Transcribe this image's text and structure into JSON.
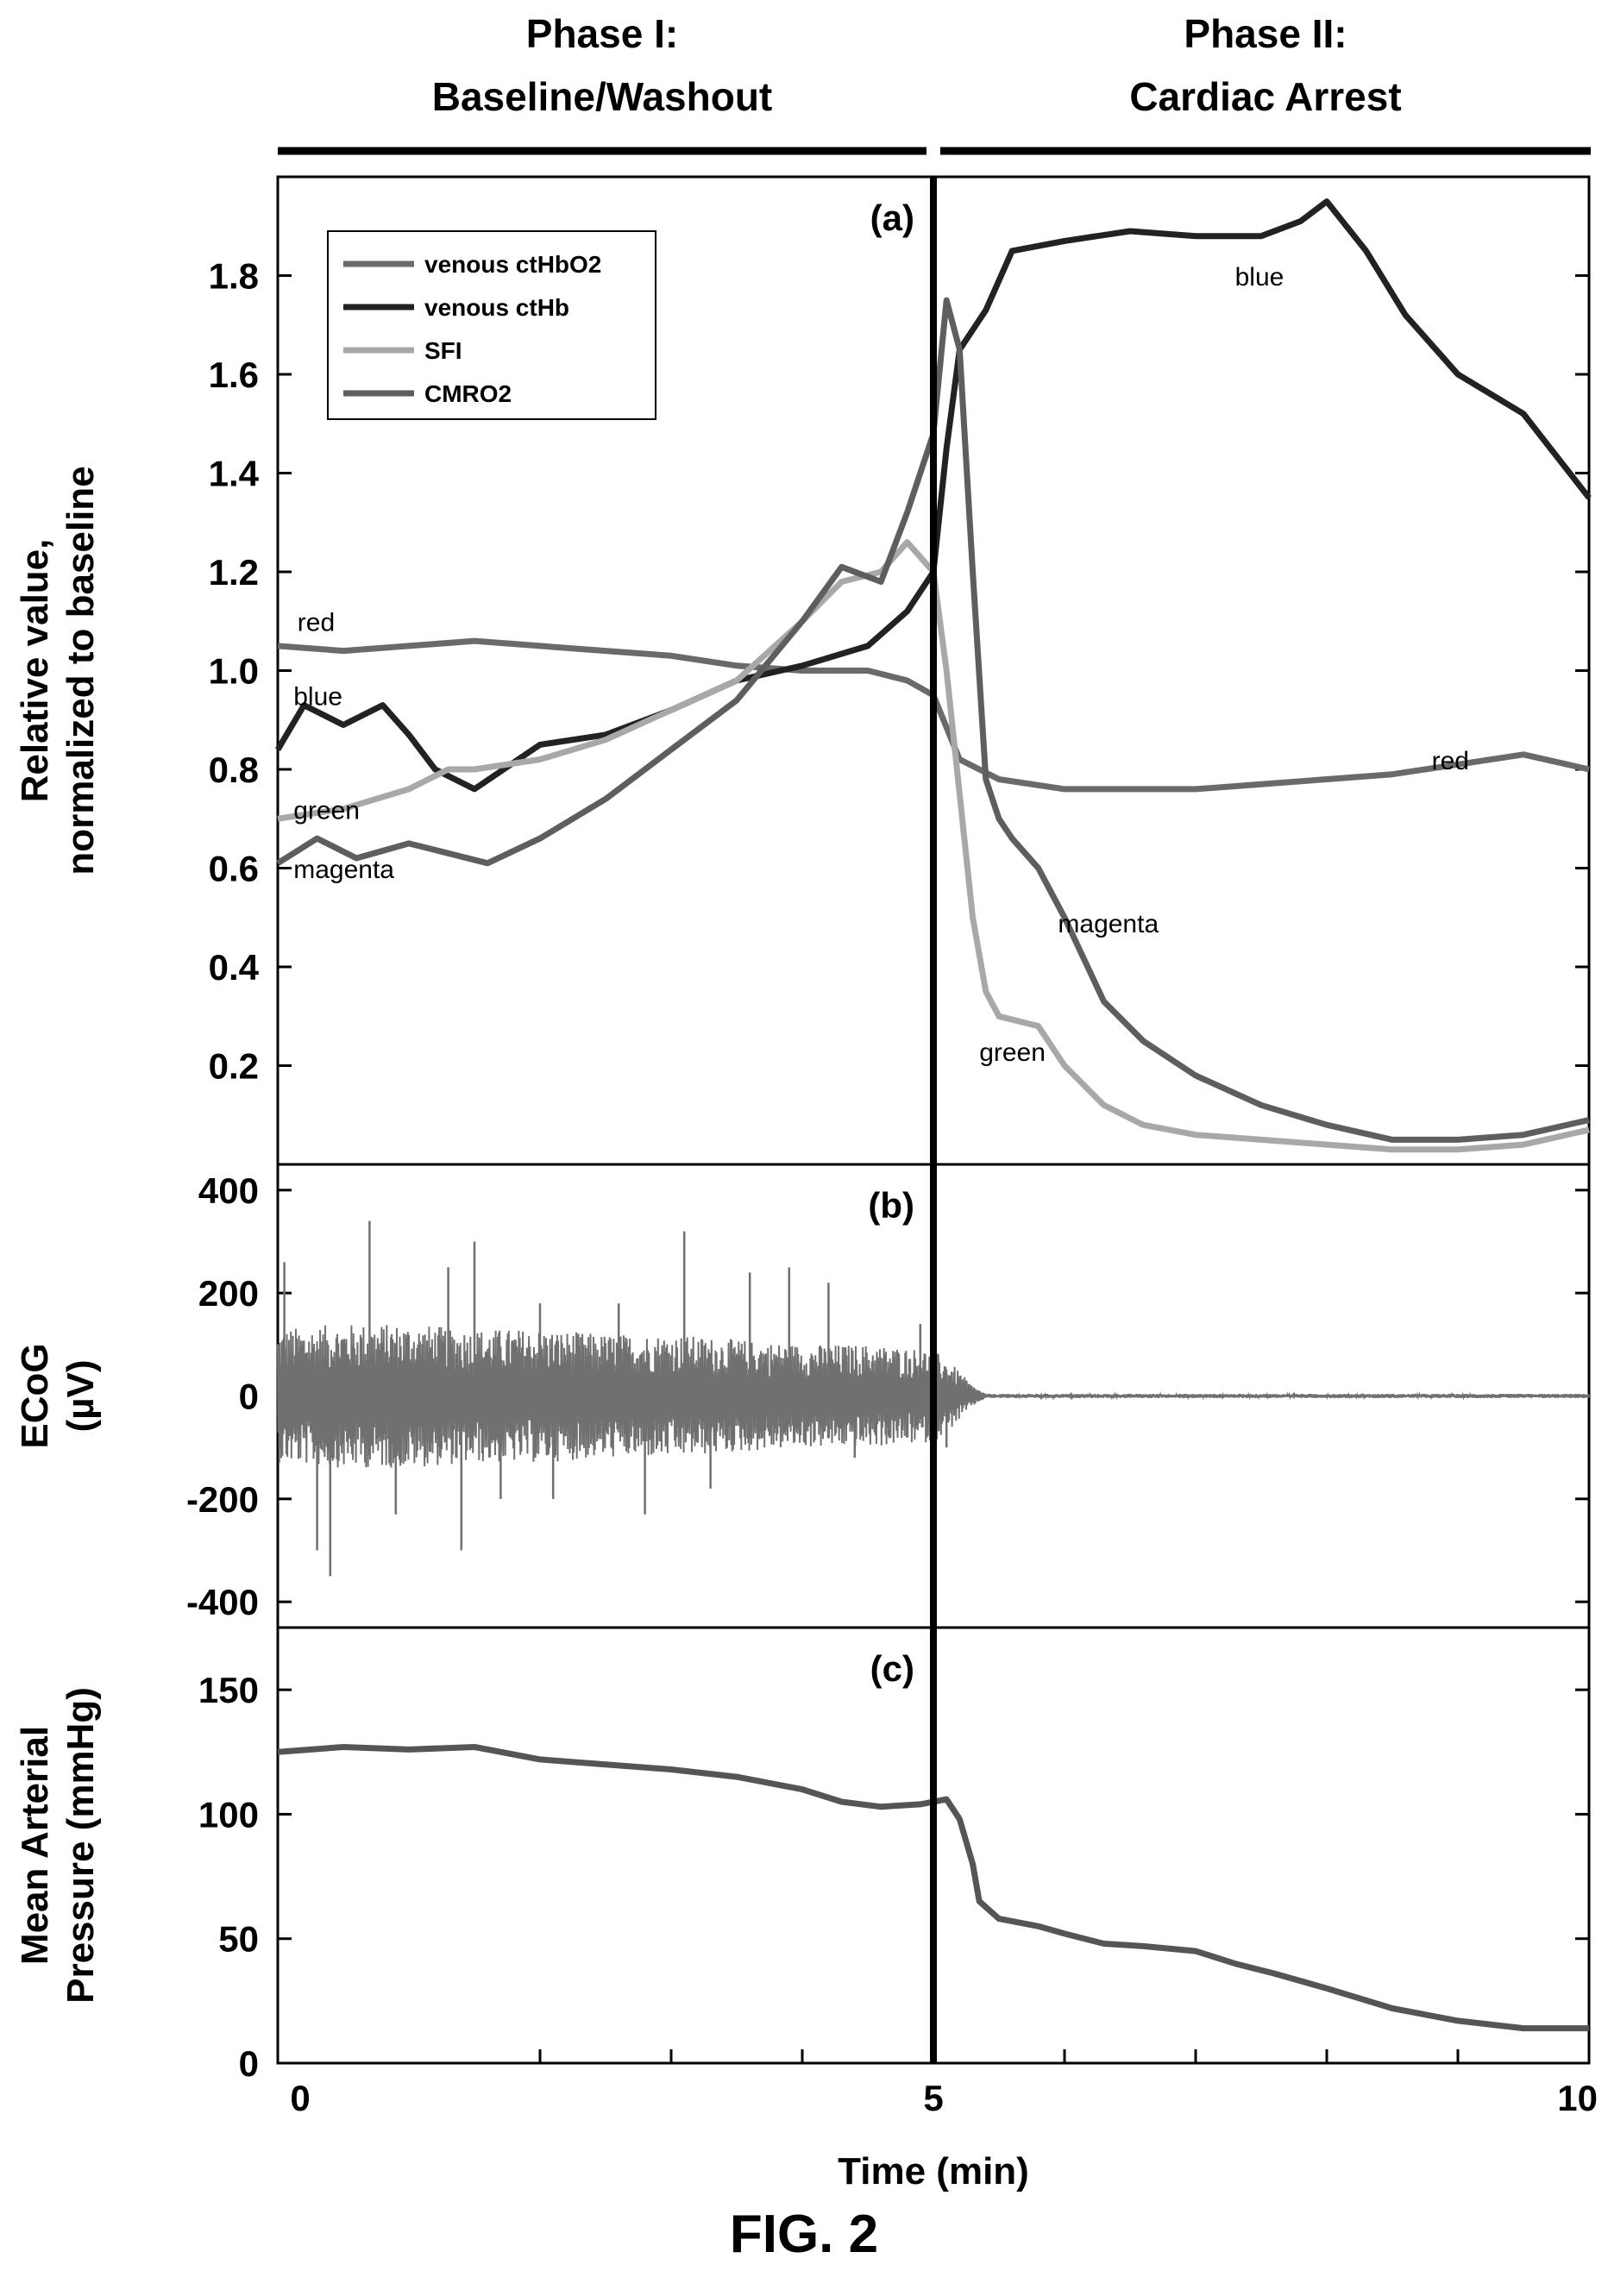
{
  "figure_label": "FIG. 2",
  "phases": [
    {
      "line1": "Phase I:",
      "line2": "Baseline/Washout",
      "x_start": 0,
      "x_end": 5
    },
    {
      "line1": "Phase II:",
      "line2": "Cardiac Arrest",
      "x_start": 5,
      "x_end": 10
    }
  ],
  "colors": {
    "red": "#6a6a6a",
    "blue": "#222222",
    "green": "#a8a8a8",
    "magenta": "#5e5e5e",
    "ecog": "#707070",
    "map": "#555555"
  },
  "chart_data": [
    {
      "id": "a",
      "type": "line",
      "panel_label": "(a)",
      "title": "",
      "xlabel": "",
      "ylabel": [
        "Relative value,",
        "normalized to baseline"
      ],
      "xlim": [
        0,
        10
      ],
      "ylim": [
        0,
        2.0
      ],
      "yticks": [
        0.2,
        0.4,
        0.6,
        0.8,
        1.0,
        1.2,
        1.4,
        1.6,
        1.8
      ],
      "ytick_labels": [
        "0.2",
        "0.4",
        "0.6",
        "0.8",
        "1.0",
        "1.2",
        "1.4",
        "1.6",
        "1.8"
      ],
      "vline_x": 5,
      "legend_placement": "top-left",
      "series": [
        {
          "key": "red",
          "name": "venous ctHbO2",
          "x": [
            0,
            0.5,
            1,
            1.5,
            2,
            2.5,
            3,
            3.5,
            4,
            4.5,
            4.8,
            5,
            5.2,
            5.5,
            6,
            6.5,
            7,
            7.5,
            8,
            8.5,
            9,
            9.5,
            10
          ],
          "y": [
            1.05,
            1.04,
            1.05,
            1.06,
            1.05,
            1.04,
            1.03,
            1.01,
            1.0,
            1.0,
            0.98,
            0.95,
            0.82,
            0.78,
            0.76,
            0.76,
            0.76,
            0.77,
            0.78,
            0.79,
            0.81,
            0.83,
            0.8
          ]
        },
        {
          "key": "blue",
          "name": "venous ctHb",
          "x": [
            0,
            0.2,
            0.5,
            0.8,
            1,
            1.2,
            1.5,
            2,
            2.5,
            3,
            3.5,
            4,
            4.5,
            4.8,
            5,
            5.1,
            5.2,
            5.4,
            5.6,
            6,
            6.5,
            7,
            7.5,
            7.8,
            8,
            8.3,
            8.6,
            9,
            9.5,
            10
          ],
          "y": [
            0.84,
            0.93,
            0.89,
            0.93,
            0.87,
            0.8,
            0.76,
            0.85,
            0.87,
            0.92,
            0.98,
            1.01,
            1.05,
            1.12,
            1.2,
            1.45,
            1.65,
            1.73,
            1.85,
            1.87,
            1.89,
            1.88,
            1.88,
            1.91,
            1.95,
            1.85,
            1.72,
            1.6,
            1.52,
            1.35
          ]
        },
        {
          "key": "green",
          "name": "SFI",
          "x": [
            0,
            0.5,
            1,
            1.3,
            1.5,
            2,
            2.5,
            3,
            3.5,
            4,
            4.3,
            4.6,
            4.8,
            5,
            5.1,
            5.2,
            5.3,
            5.4,
            5.5,
            5.8,
            6,
            6.3,
            6.6,
            7,
            7.5,
            8,
            8.5,
            9,
            9.5,
            10
          ],
          "y": [
            0.7,
            0.72,
            0.76,
            0.8,
            0.8,
            0.82,
            0.86,
            0.92,
            0.98,
            1.1,
            1.18,
            1.2,
            1.26,
            1.2,
            1.0,
            0.75,
            0.5,
            0.35,
            0.3,
            0.28,
            0.2,
            0.12,
            0.08,
            0.06,
            0.05,
            0.04,
            0.03,
            0.03,
            0.04,
            0.07
          ]
        },
        {
          "key": "magenta",
          "name": "CMRO2",
          "x": [
            0,
            0.3,
            0.6,
            1,
            1.3,
            1.6,
            2,
            2.5,
            3,
            3.5,
            4,
            4.3,
            4.6,
            4.8,
            5,
            5.1,
            5.2,
            5.3,
            5.4,
            5.5,
            5.6,
            5.8,
            6,
            6.3,
            6.6,
            7,
            7.5,
            8,
            8.5,
            9,
            9.5,
            10
          ],
          "y": [
            0.61,
            0.66,
            0.62,
            0.65,
            0.63,
            0.61,
            0.66,
            0.74,
            0.84,
            0.94,
            1.1,
            1.21,
            1.18,
            1.32,
            1.48,
            1.75,
            1.65,
            1.2,
            0.78,
            0.7,
            0.66,
            0.6,
            0.5,
            0.33,
            0.25,
            0.18,
            0.12,
            0.08,
            0.05,
            0.05,
            0.06,
            0.09
          ]
        }
      ],
      "annotations": [
        {
          "text": "red",
          "x": 0.15,
          "y": 1.08
        },
        {
          "text": "blue",
          "x": 0.12,
          "y": 0.93
        },
        {
          "text": "green",
          "x": 0.12,
          "y": 0.7
        },
        {
          "text": "magenta",
          "x": 0.12,
          "y": 0.58
        },
        {
          "text": "blue",
          "x": 7.3,
          "y": 1.78
        },
        {
          "text": "red",
          "x": 8.8,
          "y": 0.8
        },
        {
          "text": "magenta",
          "x": 5.95,
          "y": 0.47
        },
        {
          "text": "green",
          "x": 5.35,
          "y": 0.21
        }
      ]
    },
    {
      "id": "b",
      "type": "line",
      "panel_label": "(b)",
      "title": "",
      "xlabel": "",
      "ylabel": [
        "ECoG",
        "(µV)"
      ],
      "xlim": [
        0,
        10
      ],
      "ylim": [
        -450,
        450
      ],
      "yticks": [
        -400,
        -200,
        0,
        200,
        400
      ],
      "ytick_labels": [
        "-400",
        "-200",
        "0",
        "200",
        "400"
      ],
      "vline_x": 5,
      "series": [
        {
          "key": "ecog",
          "name": "",
          "x": [
            0,
            0.5,
            1,
            1.5,
            2,
            2.5,
            3,
            3.5,
            4,
            4.5,
            5,
            5.2,
            5.3,
            5.5,
            10
          ],
          "y": [
            0,
            0,
            0,
            0,
            0,
            0,
            0,
            0,
            0,
            0,
            0,
            0,
            0,
            0,
            0
          ]
        }
      ],
      "envelope": {
        "x": [
          0,
          0.5,
          1,
          1.5,
          2,
          2.5,
          3,
          3.5,
          4,
          4.5,
          5,
          5.15,
          5.3,
          5.4,
          10
        ],
        "amplitude": [
          130,
          140,
          140,
          130,
          130,
          120,
          120,
          110,
          100,
          100,
          90,
          60,
          20,
          4,
          4
        ],
        "peaks": [
          {
            "x": 0.05,
            "y": 260
          },
          {
            "x": 0.3,
            "y": -300
          },
          {
            "x": 0.4,
            "y": -350
          },
          {
            "x": 0.7,
            "y": 340
          },
          {
            "x": 0.9,
            "y": -230
          },
          {
            "x": 1.3,
            "y": 250
          },
          {
            "x": 1.4,
            "y": -300
          },
          {
            "x": 1.5,
            "y": 300
          },
          {
            "x": 1.7,
            "y": -200
          },
          {
            "x": 2.0,
            "y": 180
          },
          {
            "x": 2.1,
            "y": -200
          },
          {
            "x": 2.6,
            "y": 180
          },
          {
            "x": 2.8,
            "y": -230
          },
          {
            "x": 3.1,
            "y": 320
          },
          {
            "x": 3.3,
            "y": -180
          },
          {
            "x": 3.6,
            "y": 240
          },
          {
            "x": 3.9,
            "y": 250
          },
          {
            "x": 4.2,
            "y": 220
          },
          {
            "x": 4.4,
            "y": -120
          },
          {
            "x": 4.9,
            "y": 140
          },
          {
            "x": 5.1,
            "y": -100
          }
        ]
      }
    },
    {
      "id": "c",
      "type": "line",
      "panel_label": "(c)",
      "title": "",
      "xlabel": "Time (min)",
      "ylabel": [
        "Mean Arterial",
        "Pressure (mmHg)"
      ],
      "xlim": [
        0,
        10
      ],
      "ylim": [
        0,
        175
      ],
      "yticks": [
        0,
        50,
        100,
        150
      ],
      "ytick_labels": [
        "0",
        "50",
        "100",
        "150"
      ],
      "xticks": [
        0,
        2,
        3,
        4,
        5,
        6,
        7,
        8,
        9,
        10
      ],
      "xtick_labels": [
        "0",
        "",
        "",
        "",
        "5",
        "",
        "",
        "",
        "",
        "10"
      ],
      "vline_x": 5,
      "series": [
        {
          "key": "map",
          "name": "",
          "x": [
            0,
            0.5,
            1,
            1.5,
            2,
            2.5,
            3,
            3.5,
            4,
            4.3,
            4.6,
            4.9,
            5.1,
            5.2,
            5.3,
            5.35,
            5.5,
            5.8,
            6,
            6.3,
            6.6,
            7,
            7.3,
            7.6,
            8,
            8.5,
            9,
            9.5,
            10
          ],
          "y": [
            125,
            127,
            126,
            127,
            122,
            120,
            118,
            115,
            110,
            105,
            103,
            104,
            106,
            98,
            80,
            65,
            58,
            55,
            52,
            48,
            47,
            45,
            40,
            36,
            30,
            22,
            17,
            14,
            14
          ]
        }
      ]
    }
  ]
}
